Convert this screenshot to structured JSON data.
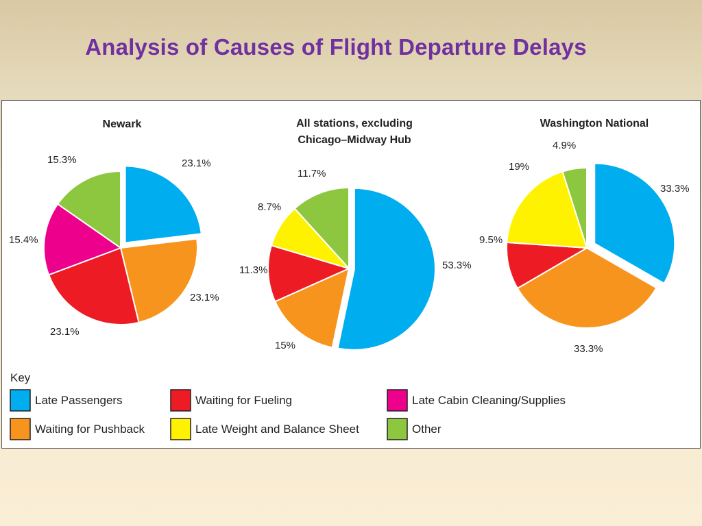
{
  "slide": {
    "title": "Analysis of Causes of Flight Departure Delays"
  },
  "colors": {
    "Late Passengers": "#00aeef",
    "Waiting for Pushback": "#f7941d",
    "Waiting for Fueling": "#ed1c24",
    "Late Weight and Balance Sheet": "#fff200",
    "Late Cabin Cleaning/Supplies": "#ec008c",
    "Other": "#8dc63f"
  },
  "chart_data": [
    {
      "type": "pie",
      "title": "Newark",
      "slices": [
        {
          "category": "Late Passengers",
          "value": 23.1,
          "label": "23.1%",
          "exploded": true
        },
        {
          "category": "Waiting for Pushback",
          "value": 23.1,
          "label": "23.1%"
        },
        {
          "category": "Waiting for Fueling",
          "value": 23.1,
          "label": "23.1%"
        },
        {
          "category": "Late Cabin Cleaning/Supplies",
          "value": 15.4,
          "label": "15.4%"
        },
        {
          "category": "Other",
          "value": 15.3,
          "label": "15.3%"
        }
      ]
    },
    {
      "type": "pie",
      "title": "All stations, excluding",
      "title_line2": "Chicago–Midway Hub",
      "slices": [
        {
          "category": "Late Passengers",
          "value": 53.3,
          "label": "53.3%",
          "exploded": true
        },
        {
          "category": "Waiting for Pushback",
          "value": 15,
          "label": "15%"
        },
        {
          "category": "Waiting for Fueling",
          "value": 11.3,
          "label": "11.3%"
        },
        {
          "category": "Late Weight and Balance Sheet",
          "value": 8.7,
          "label": "8.7%"
        },
        {
          "category": "Other",
          "value": 11.7,
          "label": "11.7%"
        }
      ]
    },
    {
      "type": "pie",
      "title": "Washington National",
      "slices": [
        {
          "category": "Late Passengers",
          "value": 33.3,
          "label": "33.3%",
          "exploded": true
        },
        {
          "category": "Waiting for Pushback",
          "value": 33.3,
          "label": "33.3%"
        },
        {
          "category": "Waiting for Fueling",
          "value": 9.5,
          "label": "9.5%"
        },
        {
          "category": "Late Weight and Balance Sheet",
          "value": 19,
          "label": "19%"
        },
        {
          "category": "Other",
          "value": 4.9,
          "label": "4.9%"
        }
      ]
    }
  ],
  "key": {
    "title": "Key",
    "items": [
      {
        "category": "Late Passengers",
        "label": "Late Passengers"
      },
      {
        "category": "Waiting for Pushback",
        "label": "Waiting for Pushback"
      },
      {
        "category": "Waiting for Fueling",
        "label": "Waiting for Fueling"
      },
      {
        "category": "Late Weight and Balance Sheet",
        "label": "Late Weight and Balance Sheet"
      },
      {
        "category": "Late Cabin Cleaning/Supplies",
        "label": "Late Cabin Cleaning/Supplies"
      },
      {
        "category": "Other",
        "label": "Other"
      }
    ]
  }
}
